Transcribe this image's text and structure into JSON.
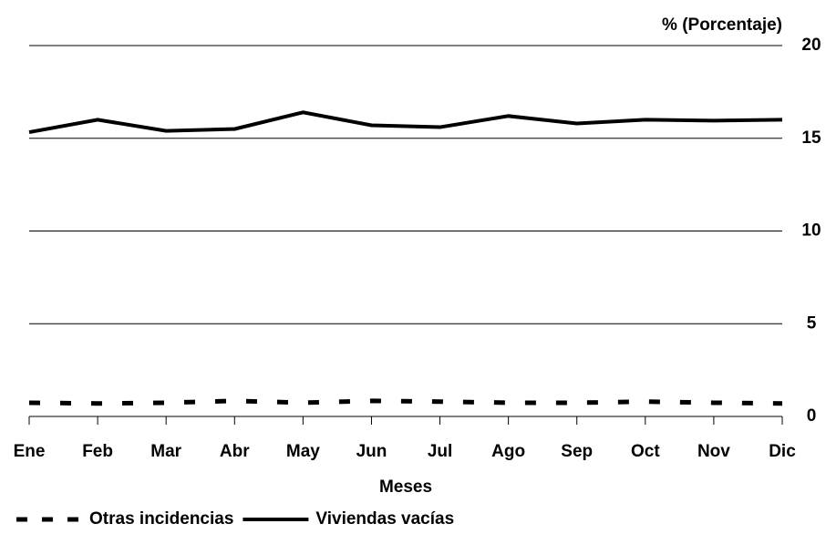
{
  "chart_data": {
    "type": "line",
    "y_axis_label": "% (Porcentaje)",
    "x_axis_label": "Meses",
    "categories": [
      "Ene",
      "Feb",
      "Mar",
      "Abr",
      "May",
      "Jun",
      "Jul",
      "Ago",
      "Sep",
      "Oct",
      "Nov",
      "Dic"
    ],
    "series": [
      {
        "name": "Otras incidencias",
        "color": "#000000",
        "line_style": "dashed",
        "values": [
          0.74,
          0.7,
          0.74,
          0.84,
          0.74,
          0.84,
          0.8,
          0.74,
          0.74,
          0.8,
          0.74,
          0.7
        ]
      },
      {
        "name": "Viviendas vacías",
        "color": "#000000",
        "line_style": "solid",
        "values": [
          15.33,
          16.0,
          15.4,
          15.5,
          16.4,
          15.7,
          15.6,
          16.2,
          15.8,
          16.0,
          15.95,
          16.0
        ]
      }
    ],
    "ylim": [
      0,
      20
    ],
    "yticks": [
      0,
      5,
      10,
      15,
      20
    ],
    "grid": true,
    "y_axis_side": "right",
    "legend": "bottom"
  }
}
